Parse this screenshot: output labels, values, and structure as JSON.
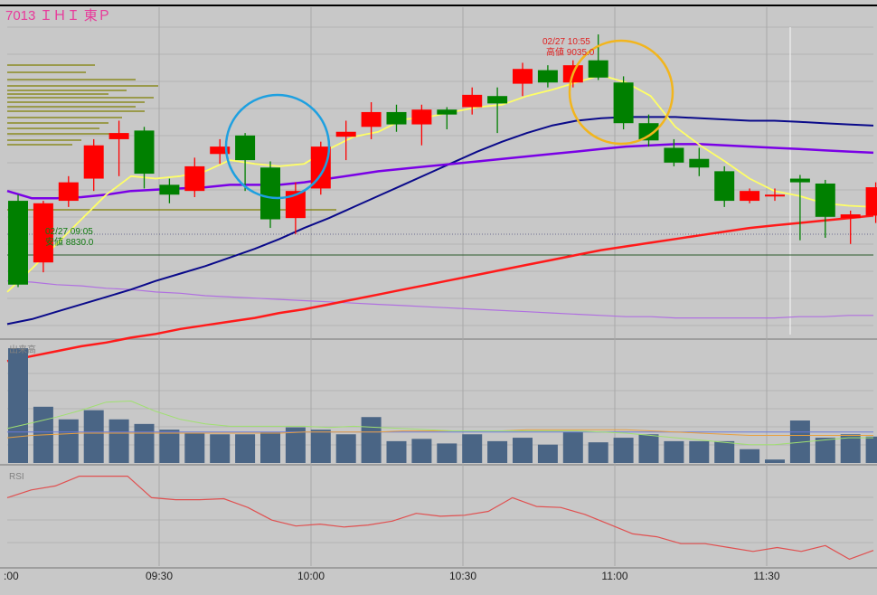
{
  "header": {
    "title": "7013 ＩＨＩ 東Ｐ"
  },
  "colors": {
    "panel_bg": "#c8c8c8",
    "grid": "#b3b3b3",
    "up": "#ff0000",
    "down": "#008000",
    "ma_short": "#ffff66",
    "ma_mid": "#7a00e6",
    "ma_long": "#0a0a8a",
    "ma_xlong": "#ff1a1a",
    "vol_bar": "#4a6585",
    "rsi": "#e05050",
    "title": "#e8399a",
    "profile": "#7f7f00"
  },
  "annotations": {
    "high_date": "02/27 10:55",
    "high_label": "高値 9035.0",
    "low_date": "02/27 09:05",
    "low_label": "安値 8830.0"
  },
  "panels": {
    "volume_label": "出来高",
    "rsi_label": "RSI"
  },
  "chart_data": {
    "type": "candlestick",
    "title": "7013 ＩＨＩ 東Ｐ",
    "x_ticks": [
      ":00",
      "09:30",
      "10:00",
      "10:30",
      "11:00",
      "11:30"
    ],
    "price_range": [
      8790,
      9060
    ],
    "candles": [
      {
        "o": 8900,
        "c": 8832,
        "h": 8905,
        "l": 8830
      },
      {
        "o": 8850,
        "c": 8898,
        "h": 8900,
        "l": 8842
      },
      {
        "o": 8900,
        "c": 8915,
        "h": 8920,
        "l": 8895
      },
      {
        "o": 8918,
        "c": 8945,
        "h": 8950,
        "l": 8908
      },
      {
        "o": 8950,
        "c": 8955,
        "h": 8965,
        "l": 8920
      },
      {
        "o": 8957,
        "c": 8922,
        "h": 8960,
        "l": 8910
      },
      {
        "o": 8913,
        "c": 8905,
        "h": 8918,
        "l": 8898
      },
      {
        "o": 8908,
        "c": 8928,
        "h": 8935,
        "l": 8903
      },
      {
        "o": 8938,
        "c": 8944,
        "h": 8950,
        "l": 8930
      },
      {
        "o": 8953,
        "c": 8933,
        "h": 8955,
        "l": 8908
      },
      {
        "o": 8927,
        "c": 8885,
        "h": 8932,
        "l": 8878
      },
      {
        "o": 8886,
        "c": 8908,
        "h": 8915,
        "l": 8873
      },
      {
        "o": 8910,
        "c": 8944,
        "h": 8948,
        "l": 8905
      },
      {
        "o": 8952,
        "c": 8956,
        "h": 8965,
        "l": 8933
      },
      {
        "o": 8960,
        "c": 8972,
        "h": 8980,
        "l": 8950
      },
      {
        "o": 8972,
        "c": 8962,
        "h": 8978,
        "l": 8956
      },
      {
        "o": 8962,
        "c": 8974,
        "h": 8978,
        "l": 8945
      },
      {
        "o": 8974,
        "c": 8970,
        "h": 8976,
        "l": 8958
      },
      {
        "o": 8976,
        "c": 8986,
        "h": 8992,
        "l": 8970
      },
      {
        "o": 8985,
        "c": 8979,
        "h": 8992,
        "l": 8955
      },
      {
        "o": 8995,
        "c": 9007,
        "h": 9012,
        "l": 8985
      },
      {
        "o": 9006,
        "c": 8996,
        "h": 9010,
        "l": 8992
      },
      {
        "o": 8996,
        "c": 9010,
        "h": 9014,
        "l": 8992
      },
      {
        "o": 9014,
        "c": 9000,
        "h": 9035,
        "l": 8998
      },
      {
        "o": 8996,
        "c": 8963,
        "h": 9001,
        "l": 8958
      },
      {
        "o": 8963,
        "c": 8949,
        "h": 8970,
        "l": 8944
      },
      {
        "o": 8943,
        "c": 8931,
        "h": 8950,
        "l": 8928
      },
      {
        "o": 8934,
        "c": 8927,
        "h": 8943,
        "l": 8920
      },
      {
        "o": 8924,
        "c": 8900,
        "h": 8928,
        "l": 8895
      },
      {
        "o": 8900,
        "c": 8908,
        "h": 8910,
        "l": 8898
      },
      {
        "o": 8905,
        "c": 8905,
        "h": 8910,
        "l": 8900
      },
      {
        "o": 8918,
        "c": 8915,
        "h": 8921,
        "l": 8868
      },
      {
        "o": 8914,
        "c": 8887,
        "h": 8917,
        "l": 8870
      },
      {
        "o": 8886,
        "c": 8889,
        "h": 8892,
        "l": 8865
      },
      {
        "o": 8888,
        "c": 8911,
        "h": 8915,
        "l": 8882
      }
    ],
    "ma_short": [
      8826,
      8845,
      8865,
      8885,
      8905,
      8920,
      8918,
      8920,
      8924,
      8933,
      8930,
      8928,
      8930,
      8942,
      8952,
      8956,
      8966,
      8968,
      8972,
      8976,
      8978,
      8985,
      8990,
      8996,
      9002,
      8996,
      8985,
      8960,
      8945,
      8932,
      8918,
      8908,
      8904,
      8898,
      8896,
      8895
    ],
    "ma_mid": [
      8908,
      8902,
      8902,
      8903,
      8905,
      8908,
      8909,
      8910,
      8911,
      8913,
      8913,
      8913,
      8915,
      8918,
      8921,
      8924,
      8926,
      8928,
      8930,
      8932,
      8934,
      8936,
      8938,
      8940,
      8942,
      8944,
      8945,
      8946,
      8946,
      8945,
      8944,
      8943,
      8942,
      8941,
      8940,
      8939
    ],
    "ma_long": [
      8800,
      8804,
      8810,
      8816,
      8822,
      8828,
      8835,
      8841,
      8847,
      8854,
      8861,
      8869,
      8878,
      8886,
      8895,
      8904,
      8913,
      8922,
      8931,
      8940,
      8948,
      8955,
      8961,
      8965,
      8967,
      8968,
      8968,
      8968,
      8967,
      8966,
      8965,
      8965,
      8964,
      8963,
      8962,
      8961
    ],
    "ma_xlong": [
      8770,
      8774,
      8778,
      8782,
      8785,
      8789,
      8792,
      8796,
      8799,
      8802,
      8805,
      8809,
      8812,
      8816,
      8820,
      8824,
      8828,
      8832,
      8836,
      8840,
      8844,
      8848,
      8852,
      8856,
      8860,
      8863,
      8866,
      8869,
      8872,
      8875,
      8878,
      8880,
      8882,
      8884,
      8886,
      8888
    ],
    "ma_lavender": [
      8835,
      8834,
      8832,
      8831,
      8829,
      8828,
      8826,
      8825,
      8823,
      8822,
      8821,
      8820,
      8819,
      8818,
      8817,
      8816,
      8815,
      8814,
      8813,
      8812,
      8811,
      8810,
      8809,
      8808,
      8807,
      8806,
      8806,
      8805,
      8805,
      8805,
      8805,
      8805,
      8806,
      8806,
      8807,
      8807
    ],
    "volume": [
      100,
      49,
      38,
      46,
      38,
      34,
      29,
      26,
      25,
      25,
      27,
      31,
      29,
      25,
      40,
      19,
      21,
      17,
      25,
      19,
      22,
      16,
      27,
      18,
      22,
      25,
      19,
      19,
      19,
      12,
      3,
      37,
      22,
      25,
      23
    ],
    "volume_ma_green": [
      30,
      35,
      40,
      46,
      53,
      54,
      45,
      38,
      34,
      32,
      32,
      32,
      32,
      31,
      32,
      31,
      30,
      29,
      28,
      28,
      28,
      28,
      28,
      28,
      27,
      26,
      24,
      22,
      20,
      18,
      16,
      16,
      18,
      20,
      22,
      22
    ],
    "volume_ma_orange": [
      22,
      24,
      25,
      26,
      26,
      26,
      26,
      26,
      26,
      26,
      26,
      26,
      27,
      27,
      27,
      27,
      28,
      28,
      28,
      28,
      28,
      29,
      29,
      29,
      29,
      29,
      28,
      27,
      26,
      25,
      24,
      24,
      24,
      24,
      24,
      24
    ],
    "volume_ma_blue": [
      27,
      27,
      27,
      27,
      27,
      27,
      27,
      27,
      27,
      27,
      27,
      27,
      27,
      27,
      27,
      27,
      27,
      27,
      27,
      27,
      27,
      27,
      27,
      27,
      27,
      27,
      27,
      27,
      27,
      27,
      27,
      27,
      27,
      27,
      27,
      27
    ],
    "rsi": [
      70,
      78,
      82,
      92,
      92,
      92,
      70,
      68,
      68,
      69,
      60,
      47,
      41,
      43,
      40,
      42,
      46,
      54,
      51,
      52,
      56,
      70,
      61,
      60,
      53,
      43,
      33,
      30,
      23,
      23,
      19,
      15,
      19,
      15,
      21,
      7,
      16
    ]
  }
}
